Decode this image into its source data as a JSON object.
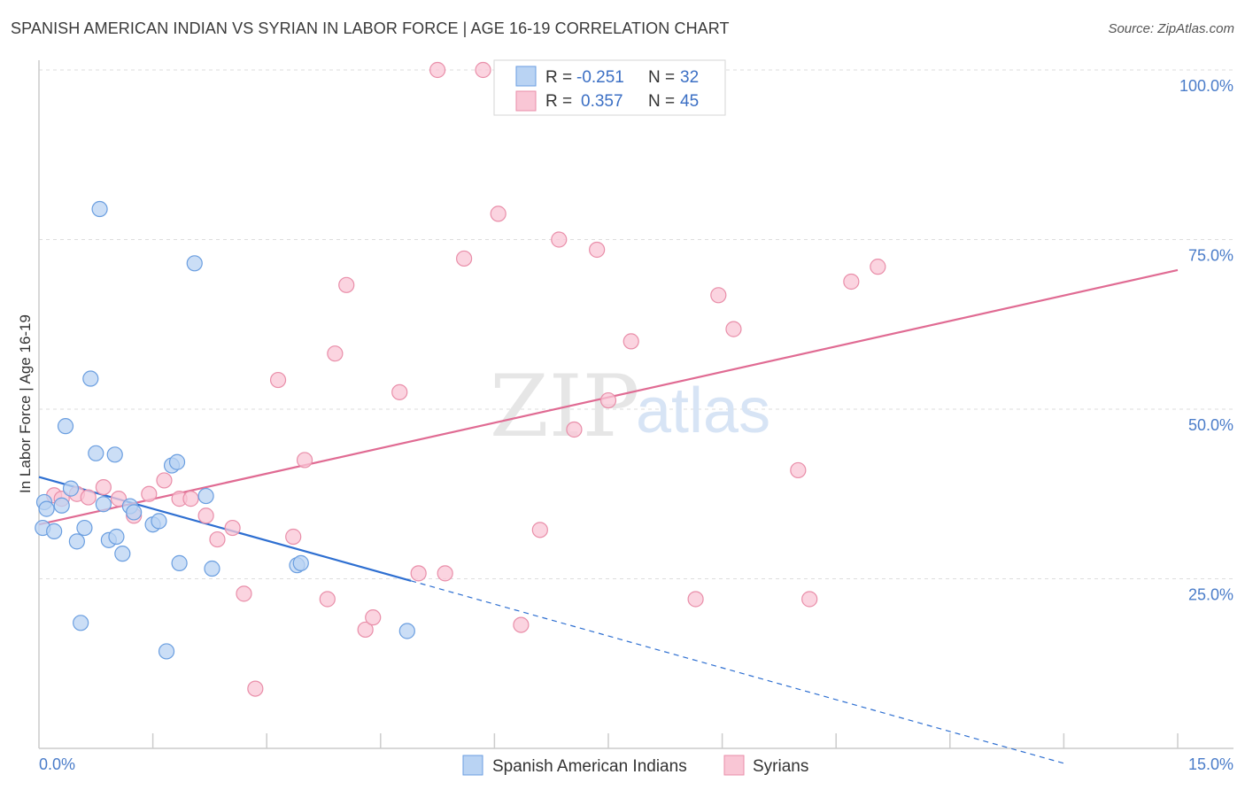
{
  "title": "SPANISH AMERICAN INDIAN VS SYRIAN IN LABOR FORCE | AGE 16-19 CORRELATION CHART",
  "source": "Source: ZipAtlas.com",
  "watermark": {
    "zip": "ZIP",
    "atlas": "atlas"
  },
  "legend_top": {
    "r_label": "R =",
    "n_label": "N =",
    "rows": [
      {
        "r": "-0.251",
        "n": "32"
      },
      {
        "r": "0.357",
        "n": "45"
      }
    ]
  },
  "chart_data": {
    "type": "scatter",
    "title": "SPANISH AMERICAN INDIAN VS SYRIAN IN LABOR FORCE | AGE 16-19 CORRELATION CHART",
    "ylabel": "In Labor Force | Age 16-19",
    "xlim": [
      0,
      15
    ],
    "ylim": [
      0,
      100
    ],
    "x_tick_labels": [
      "0.0%",
      "15.0%"
    ],
    "y_ticks": [
      25,
      50,
      75,
      100
    ],
    "y_tick_labels": [
      "25.0%",
      "50.0%",
      "75.0%",
      "100.0%"
    ],
    "grid": true,
    "legend_position": "bottom",
    "colors": {
      "blue_fill": "#b9d3f3",
      "blue_stroke": "#6a9ee0",
      "blue_line": "#2e6fd1",
      "pink_fill": "#f9c6d5",
      "pink_stroke": "#e98ea9",
      "pink_line": "#e06b93"
    },
    "series": [
      {
        "name": "Spanish American Indians",
        "r": -0.251,
        "n": 32,
        "trend": {
          "x0": 0,
          "y0": 40,
          "x1": 4.9,
          "y1": 24.7,
          "dash_x1": 13.5,
          "dash_y1": -2.2
        },
        "points": [
          [
            0.05,
            32.5
          ],
          [
            0.07,
            36.3
          ],
          [
            0.1,
            35.3
          ],
          [
            0.2,
            32
          ],
          [
            0.3,
            35.8
          ],
          [
            0.35,
            47.5
          ],
          [
            0.42,
            38.3
          ],
          [
            0.5,
            30.5
          ],
          [
            0.55,
            18.5
          ],
          [
            0.6,
            32.5
          ],
          [
            0.68,
            54.5
          ],
          [
            0.75,
            43.5
          ],
          [
            0.8,
            79.5
          ],
          [
            0.85,
            36
          ],
          [
            0.92,
            30.7
          ],
          [
            1.0,
            43.3
          ],
          [
            1.02,
            31.2
          ],
          [
            1.1,
            28.7
          ],
          [
            1.2,
            35.7
          ],
          [
            1.25,
            34.8
          ],
          [
            1.5,
            33
          ],
          [
            1.58,
            33.5
          ],
          [
            1.68,
            14.3
          ],
          [
            1.75,
            41.7
          ],
          [
            1.82,
            42.2
          ],
          [
            1.85,
            27.3
          ],
          [
            2.05,
            71.5
          ],
          [
            2.2,
            37.2
          ],
          [
            2.28,
            26.5
          ],
          [
            3.4,
            27
          ],
          [
            3.45,
            27.3
          ],
          [
            4.85,
            17.3
          ]
        ]
      },
      {
        "name": "Syrians",
        "r": 0.357,
        "n": 45,
        "trend": {
          "x0": 0,
          "y0": 33,
          "x1": 15,
          "y1": 70.5
        },
        "points": [
          [
            0.2,
            37.3
          ],
          [
            0.3,
            36.8
          ],
          [
            0.5,
            37.5
          ],
          [
            0.65,
            37
          ],
          [
            0.85,
            38.5
          ],
          [
            1.05,
            36.8
          ],
          [
            1.25,
            34.3
          ],
          [
            1.45,
            37.5
          ],
          [
            1.65,
            39.5
          ],
          [
            1.85,
            36.8
          ],
          [
            2.0,
            36.8
          ],
          [
            2.2,
            34.3
          ],
          [
            2.35,
            30.8
          ],
          [
            2.55,
            32.5
          ],
          [
            2.7,
            22.8
          ],
          [
            2.85,
            8.8
          ],
          [
            3.15,
            54.3
          ],
          [
            3.35,
            31.2
          ],
          [
            3.5,
            42.5
          ],
          [
            3.8,
            22
          ],
          [
            3.9,
            58.2
          ],
          [
            4.05,
            68.3
          ],
          [
            4.3,
            17.5
          ],
          [
            4.4,
            19.3
          ],
          [
            4.75,
            52.5
          ],
          [
            5.0,
            25.8
          ],
          [
            5.25,
            100
          ],
          [
            5.35,
            25.8
          ],
          [
            5.6,
            72.2
          ],
          [
            5.85,
            100
          ],
          [
            6.05,
            78.8
          ],
          [
            6.35,
            18.2
          ],
          [
            6.6,
            32.2
          ],
          [
            6.85,
            75
          ],
          [
            7.05,
            47
          ],
          [
            7.35,
            73.5
          ],
          [
            7.5,
            51.3
          ],
          [
            7.8,
            60
          ],
          [
            8.65,
            22
          ],
          [
            8.95,
            66.8
          ],
          [
            9.15,
            61.8
          ],
          [
            10.0,
            41
          ],
          [
            10.15,
            22
          ],
          [
            10.7,
            68.8
          ],
          [
            11.05,
            71
          ]
        ]
      }
    ]
  }
}
